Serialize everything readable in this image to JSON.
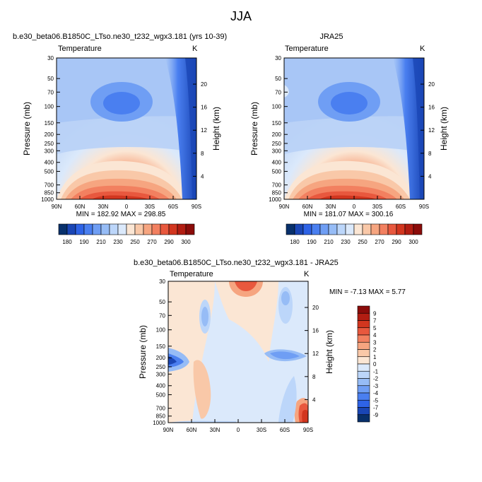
{
  "figure": {
    "title": "JJA"
  },
  "panels": [
    {
      "id": "model",
      "title": "b.e30_beta06.B1850C_LTso.ne30_t232_wgx3.181 (yrs 10-39)",
      "left_label": "Temperature",
      "right_label": "K",
      "ylabel": "Pressure (mb)",
      "right_ylabel": "Height (km)",
      "stats": "MIN = 182.92  MAX = 298.85"
    },
    {
      "id": "obs",
      "title": "JRA25",
      "left_label": "Temperature",
      "right_label": "K",
      "ylabel": "Pressure (mb)",
      "right_ylabel": "Height (km)",
      "stats": "MIN = 181.07  MAX = 300.16"
    },
    {
      "id": "diff",
      "title": "b.e30_beta06.B1850C_LTso.ne30_t232_wgx3.181 - JRA25",
      "left_label": "Temperature",
      "right_label": "K",
      "ylabel": "Pressure (mb)",
      "right_ylabel": "Height (km)",
      "stats": "MIN =  -7.13  MAX =  5.77"
    }
  ],
  "colorbars": {
    "temperature": {
      "labels": [
        "180",
        "190",
        "210",
        "230",
        "250",
        "270",
        "290",
        "300"
      ],
      "colors": [
        "#08306b",
        "#1a46b5",
        "#2e63e6",
        "#4a7ff0",
        "#6f9ef4",
        "#96bcf6",
        "#bcd6fa",
        "#dbe9fb",
        "#fbe6d4",
        "#f9c8a8",
        "#f6a580",
        "#f28060",
        "#e8583e",
        "#d2361f",
        "#b21d12",
        "#8b0c0a"
      ]
    },
    "difference": {
      "labels": [
        "9",
        "7",
        "5",
        "4",
        "3",
        "2",
        "1",
        "0",
        "-1",
        "-2",
        "-3",
        "-4",
        "-5",
        "-7",
        "-9"
      ],
      "colors": [
        "#8b0c0a",
        "#b21d12",
        "#d2361f",
        "#e8583e",
        "#f28060",
        "#f6a580",
        "#f9c8a8",
        "#fbe6d4",
        "#dbe9fb",
        "#bcd6fa",
        "#96bcf6",
        "#6f9ef4",
        "#4a7ff0",
        "#2e63e6",
        "#1a46b5",
        "#08306b"
      ]
    }
  },
  "chart_data": [
    {
      "type": "heatmap",
      "title": "b.e30_beta06.B1850C_LTso.ne30_t232_wgx3.181 (yrs 10-39)",
      "field": "Temperature",
      "units": "K",
      "xlabel": "",
      "ylabel": "Pressure (mb)",
      "right_ylabel": "Height (km)",
      "x_ticks": [
        "90N",
        "60N",
        "30N",
        "0",
        "30S",
        "60S",
        "90S"
      ],
      "y_ticks": [
        "30",
        "50",
        "70",
        "100",
        "150",
        "200",
        "250",
        "300",
        "400",
        "500",
        "700",
        "850",
        "1000"
      ],
      "right_y_ticks": [
        "20",
        "16",
        "12",
        "8",
        "4"
      ],
      "y_scale": "log",
      "value_range": [
        182.92,
        298.85
      ],
      "approx_values_K": {
        "30mb": {
          "90N": 230,
          "60N": 230,
          "30N": 230,
          "0": 228,
          "30S": 222,
          "60S": 205,
          "90S": 185
        },
        "100mb": {
          "90N": 232,
          "60N": 228,
          "30N": 212,
          "0": 196,
          "30S": 212,
          "60S": 210,
          "90S": 195
        },
        "200mb": {
          "90N": 233,
          "60N": 232,
          "30N": 225,
          "0": 222,
          "30S": 222,
          "60S": 215,
          "90S": 198
        },
        "300mb": {
          "90N": 238,
          "60N": 238,
          "30N": 240,
          "0": 240,
          "30S": 232,
          "60S": 222,
          "90S": 205
        },
        "500mb": {
          "90N": 250,
          "60N": 258,
          "30N": 265,
          "0": 268,
          "30S": 258,
          "60S": 245,
          "90S": 225
        },
        "850mb": {
          "90N": 270,
          "60N": 280,
          "30N": 290,
          "0": 292,
          "30S": 283,
          "60S": 265,
          "90S": 240
        },
        "1000mb": {
          "90N": 275,
          "60N": 288,
          "30N": 298,
          "0": 297,
          "30S": 292,
          "60S": 277,
          "90S": 250
        }
      }
    },
    {
      "type": "heatmap",
      "title": "JRA25",
      "field": "Temperature",
      "units": "K",
      "xlabel": "",
      "ylabel": "Pressure (mb)",
      "right_ylabel": "Height (km)",
      "x_ticks": [
        "90N",
        "60N",
        "30N",
        "0",
        "30S",
        "60S",
        "90S"
      ],
      "y_ticks": [
        "30",
        "50",
        "70",
        "100",
        "150",
        "200",
        "250",
        "300",
        "400",
        "500",
        "700",
        "850",
        "1000"
      ],
      "right_y_ticks": [
        "20",
        "16",
        "12",
        "8",
        "4"
      ],
      "y_scale": "log",
      "value_range": [
        181.07,
        300.16
      ],
      "approx_values_K": {
        "30mb": {
          "90N": 230,
          "60N": 230,
          "30N": 228,
          "0": 226,
          "30S": 222,
          "60S": 205,
          "90S": 185
        },
        "100mb": {
          "90N": 232,
          "60N": 228,
          "30N": 212,
          "0": 195,
          "30S": 212,
          "60S": 212,
          "90S": 195
        },
        "200mb": {
          "90N": 233,
          "60N": 232,
          "30N": 225,
          "0": 222,
          "30S": 222,
          "60S": 216,
          "90S": 198
        },
        "300mb": {
          "90N": 238,
          "60N": 238,
          "30N": 240,
          "0": 240,
          "30S": 232,
          "60S": 222,
          "90S": 205
        },
        "500mb": {
          "90N": 250,
          "60N": 258,
          "30N": 265,
          "0": 268,
          "30S": 258,
          "60S": 245,
          "90S": 225
        },
        "850mb": {
          "90N": 270,
          "60N": 280,
          "30N": 290,
          "0": 292,
          "30S": 283,
          "60S": 265,
          "90S": 240
        },
        "1000mb": {
          "90N": 276,
          "60N": 289,
          "30N": 299,
          "0": 298,
          "30S": 293,
          "60S": 278,
          "90S": 252
        }
      }
    },
    {
      "type": "heatmap",
      "title": "b.e30_beta06.B1850C_LTso.ne30_t232_wgx3.181 - JRA25",
      "field": "Temperature",
      "units": "K",
      "xlabel": "",
      "ylabel": "Pressure (mb)",
      "right_ylabel": "Height (km)",
      "x_ticks": [
        "90N",
        "60N",
        "30N",
        "0",
        "30S",
        "60S",
        "90S"
      ],
      "y_ticks": [
        "30",
        "50",
        "70",
        "100",
        "150",
        "200",
        "250",
        "300",
        "400",
        "500",
        "700",
        "850",
        "1000"
      ],
      "right_y_ticks": [
        "20",
        "16",
        "12",
        "8",
        "4"
      ],
      "y_scale": "log",
      "value_range": [
        -7.13,
        5.77
      ],
      "approx_values_K": {
        "30mb": {
          "90N": 0,
          "60N": -1,
          "30N": 0,
          "0": 4,
          "30S": 1,
          "60S": -1,
          "90S": -2
        },
        "70mb": {
          "90N": -1,
          "60N": -2,
          "30N": 0,
          "0": 1,
          "30S": 0,
          "60S": -1,
          "90S": -1
        },
        "200mb": {
          "90N": -5,
          "60N": 0,
          "30N": 0,
          "0": -1,
          "30S": 0,
          "60S": -3,
          "90S": -1
        },
        "400mb": {
          "90N": 0,
          "60N": 1,
          "30N": 0,
          "0": -1,
          "30S": -1,
          "60S": -1,
          "90S": -1
        },
        "700mb": {
          "90N": -1,
          "60N": 1,
          "30N": -1,
          "0": -1,
          "30S": -1,
          "60S": -1,
          "90S": 4
        },
        "1000mb": {
          "90N": -2,
          "60N": -1,
          "30N": -1,
          "0": -1,
          "30S": -1,
          "60S": -1,
          "90S": 5
        }
      }
    }
  ]
}
